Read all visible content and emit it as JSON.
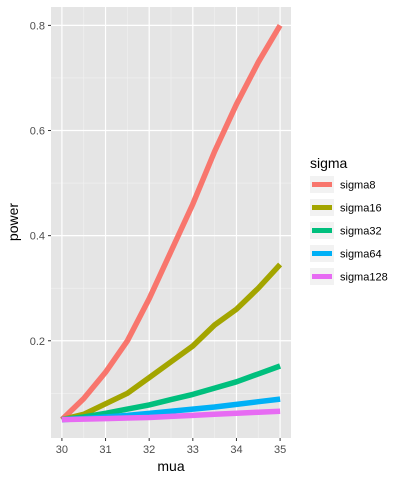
{
  "chart_data": {
    "type": "line",
    "xlabel": "mua",
    "ylabel": "power",
    "xlim": [
      29.75,
      35.25
    ],
    "ylim": [
      0.015,
      0.835
    ],
    "x_ticks": [
      30,
      31,
      32,
      33,
      34,
      35
    ],
    "y_ticks": [
      0.2,
      0.4,
      0.6,
      0.8
    ],
    "y_tick_labels": [
      "0.2",
      "0.4",
      "0.6",
      "0.8"
    ],
    "x_minor_ticks": [
      30.5,
      31.5,
      32.5,
      33.5,
      34.5
    ],
    "y_minor_ticks": [
      0.1,
      0.3,
      0.5,
      0.7
    ],
    "grid": true,
    "background": "#e5e5e5",
    "legend": {
      "title": "sigma",
      "placement": "right"
    },
    "x": [
      30,
      30.5,
      31,
      31.5,
      32,
      32.5,
      33,
      33.5,
      34,
      34.5,
      35
    ],
    "series": [
      {
        "name": "sigma8",
        "color": "#f8766d",
        "values": [
          0.05,
          0.09,
          0.14,
          0.2,
          0.28,
          0.37,
          0.46,
          0.56,
          0.65,
          0.73,
          0.8
        ]
      },
      {
        "name": "sigma16",
        "color": "#a3a500",
        "values": [
          0.05,
          0.06,
          0.08,
          0.1,
          0.13,
          0.16,
          0.19,
          0.23,
          0.26,
          0.3,
          0.345
        ]
      },
      {
        "name": "sigma32",
        "color": "#00bf7d",
        "values": [
          0.05,
          0.055,
          0.062,
          0.07,
          0.078,
          0.088,
          0.098,
          0.11,
          0.122,
          0.137,
          0.152
        ]
      },
      {
        "name": "sigma64",
        "color": "#00b0f6",
        "values": [
          0.05,
          0.052,
          0.055,
          0.058,
          0.062,
          0.066,
          0.07,
          0.074,
          0.079,
          0.084,
          0.089
        ]
      },
      {
        "name": "sigma128",
        "color": "#e76bf3",
        "values": [
          0.05,
          0.051,
          0.052,
          0.053,
          0.054,
          0.056,
          0.058,
          0.06,
          0.062,
          0.064,
          0.066
        ]
      }
    ]
  }
}
